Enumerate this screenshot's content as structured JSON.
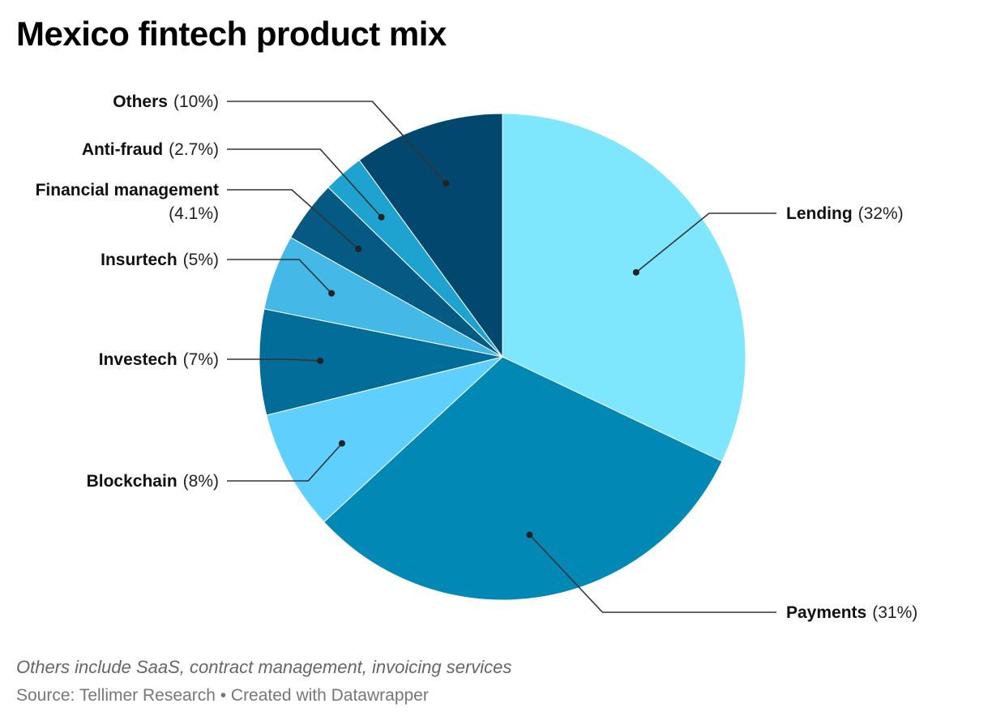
{
  "chart_data": {
    "type": "pie",
    "title": "Mexico fintech product mix",
    "unit": "%",
    "slices": [
      {
        "label": "Lending",
        "value": 32,
        "display": "32%",
        "color": "#7ee6fd"
      },
      {
        "label": "Payments",
        "value": 31,
        "display": "31%",
        "color": "#0288b5"
      },
      {
        "label": "Blockchain",
        "value": 8,
        "display": "8%",
        "color": "#5fcffd"
      },
      {
        "label": "Investech",
        "value": 7,
        "display": "7%",
        "color": "#036d99"
      },
      {
        "label": "Insurtech",
        "value": 5,
        "display": "5%",
        "color": "#44b8e6"
      },
      {
        "label": "Financial management",
        "value": 4.1,
        "display": "4.1%",
        "color": "#045a82"
      },
      {
        "label": "Anti-fraud",
        "value": 2.7,
        "display": "2.7%",
        "color": "#1ea3d1"
      },
      {
        "label": "Others",
        "value": 10,
        "display": "10%",
        "color": "#02476d"
      }
    ]
  },
  "footer": {
    "note": "Others include SaaS, contract management, invoicing services",
    "source": "Source: Tellimer Research • Created with Datawrapper"
  }
}
